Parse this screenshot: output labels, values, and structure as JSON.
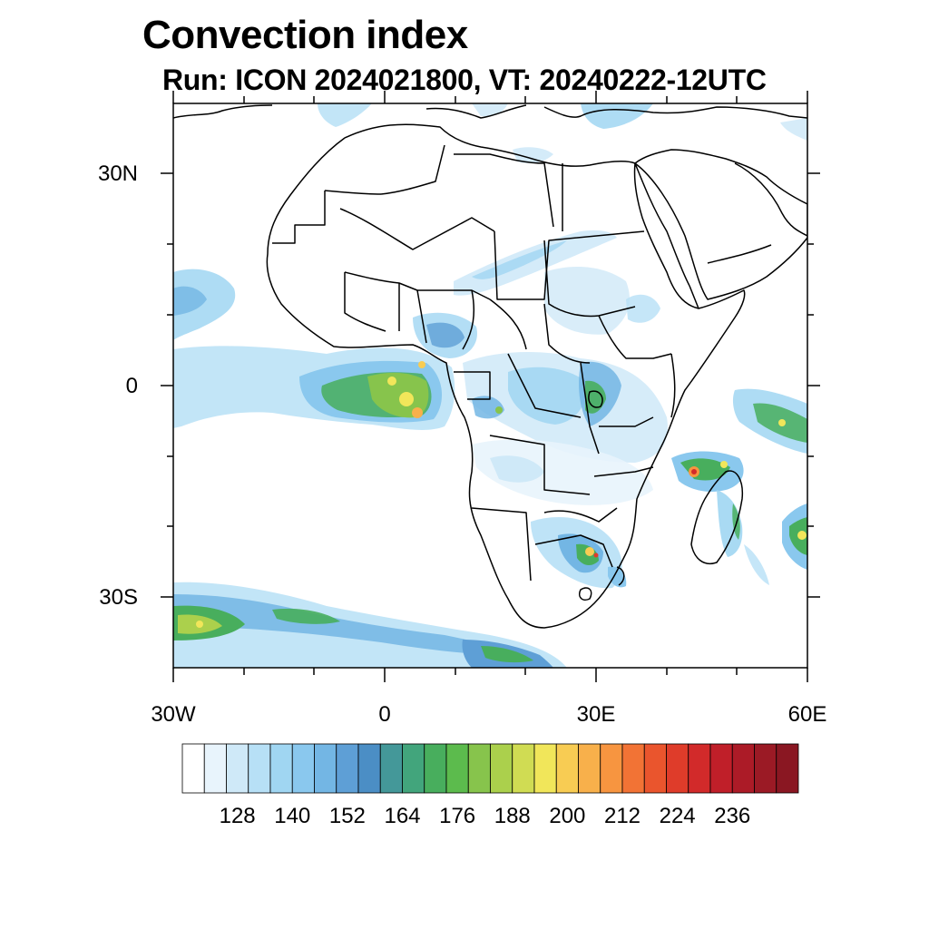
{
  "title": "Convection index",
  "subtitle": "Run: ICON 2024021800,  VT: 20240222-12UTC",
  "lat_labels": [
    "30N",
    "0",
    "30S"
  ],
  "lon_labels": [
    "30W",
    "0",
    "30E",
    "60E"
  ],
  "colorbar": {
    "colors": [
      "#ffffff",
      "#e8f4fc",
      "#cfe9f8",
      "#b7e0f6",
      "#a0d6f2",
      "#8ac8ee",
      "#73b6e4",
      "#5e9fd6",
      "#4b8ec5",
      "#449899",
      "#42a57c",
      "#48ae5d",
      "#5cbb4d",
      "#87c44c",
      "#abd04c",
      "#d0dc53",
      "#f1e65a",
      "#f8cc53",
      "#f8b04b",
      "#f79540",
      "#f27335",
      "#ea552d",
      "#df3c2a",
      "#d22a2a",
      "#c01f29",
      "#ac1b27",
      "#9b1a25",
      "#8a1722"
    ],
    "labels": [
      "128",
      "140",
      "152",
      "164",
      "176",
      "188",
      "200",
      "212",
      "224",
      "236"
    ]
  }
}
